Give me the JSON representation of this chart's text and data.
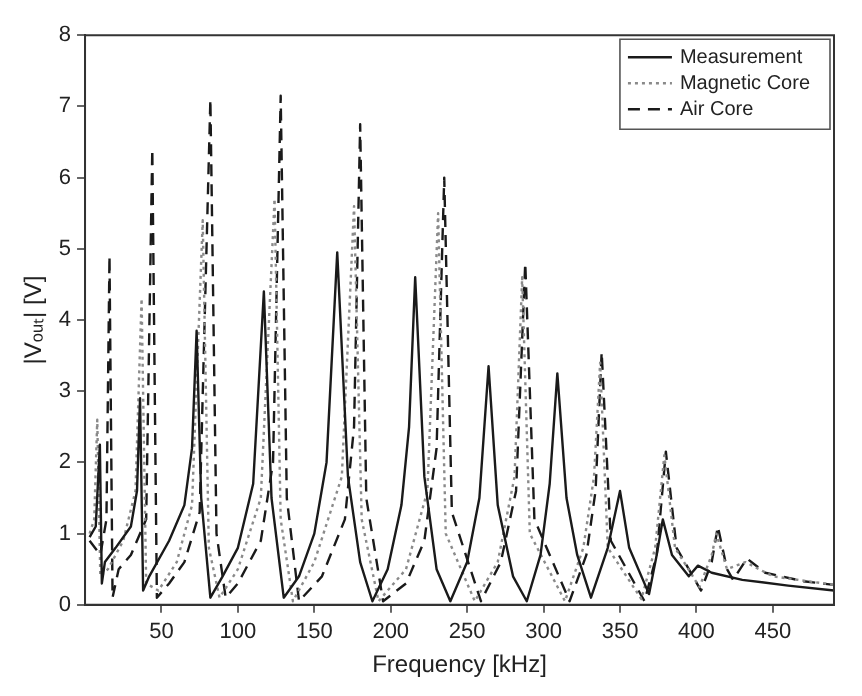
{
  "chart_data": {
    "type": "line",
    "xlabel": "Frequency [kHz]",
    "ylabel": "|Vₒᵤₜ| [V]",
    "xlim": [
      0,
      490
    ],
    "xticks": [
      50,
      100,
      150,
      200,
      250,
      300,
      350,
      400,
      450
    ],
    "ylim": [
      0,
      8
    ],
    "yticks": [
      0,
      1,
      2,
      3,
      4,
      5,
      6,
      7,
      8
    ],
    "grid": false,
    "legend": "top right",
    "marker": "none",
    "series": [
      {
        "name": "Measurement",
        "color": "#1a1a1a",
        "line_style": "solid",
        "x": [
          3,
          7,
          9.7,
          11,
          13,
          20,
          30,
          34,
          36,
          38,
          42,
          55,
          65,
          70,
          73,
          76,
          82,
          90,
          100,
          110,
          117,
          122,
          130,
          140,
          150,
          158,
          165,
          172,
          180,
          188,
          198,
          207,
          212,
          216,
          222,
          230,
          239,
          250,
          258,
          264,
          270,
          280,
          289,
          298,
          304,
          309,
          315,
          322,
          331,
          342,
          350,
          356,
          369,
          374,
          378,
          384,
          395,
          401,
          410,
          430,
          460,
          490
        ],
        "values": [
          0.95,
          1.1,
          2.25,
          0.3,
          0.6,
          0.8,
          1.1,
          1.6,
          2.9,
          0.2,
          0.4,
          0.9,
          1.4,
          2.2,
          3.85,
          1.5,
          0.1,
          0.4,
          0.8,
          1.7,
          4.4,
          1.5,
          0.1,
          0.4,
          1.0,
          2.0,
          4.95,
          1.8,
          0.6,
          0.05,
          0.5,
          1.4,
          2.5,
          4.6,
          1.8,
          0.5,
          0.05,
          0.6,
          1.5,
          3.35,
          1.4,
          0.4,
          0.05,
          0.7,
          1.7,
          3.25,
          1.5,
          0.7,
          0.1,
          0.8,
          1.6,
          0.8,
          0.15,
          0.7,
          1.2,
          0.7,
          0.4,
          0.55,
          0.45,
          0.35,
          0.27,
          0.2
        ]
      },
      {
        "name": "Magnetic Core",
        "color": "#8a8a8a",
        "line_style": "dotted",
        "x": [
          3,
          6,
          8,
          10,
          15,
          25,
          33,
          37,
          40,
          48,
          60,
          70,
          77,
          81,
          88,
          100,
          115,
          124,
          128,
          136,
          150,
          168,
          176,
          181,
          192,
          210,
          224,
          231,
          236,
          255,
          270,
          281,
          286,
          291,
          314,
          326,
          333,
          337,
          342,
          364,
          373,
          379,
          386,
          402,
          410,
          413,
          420,
          432,
          450,
          490
        ],
        "values": [
          1.0,
          1.2,
          2.6,
          0.4,
          0.5,
          0.9,
          1.6,
          4.3,
          0.3,
          0.2,
          0.6,
          1.4,
          5.4,
          0.8,
          0.1,
          0.5,
          1.5,
          5.7,
          1.2,
          0.05,
          0.6,
          1.8,
          5.6,
          1.2,
          0.05,
          0.5,
          1.6,
          5.5,
          1.0,
          0.05,
          0.6,
          1.8,
          4.6,
          1.0,
          0.05,
          0.8,
          1.8,
          3.4,
          0.8,
          0.08,
          0.8,
          2.1,
          0.8,
          0.25,
          0.7,
          1.0,
          0.5,
          0.6,
          0.4,
          0.28
        ]
      },
      {
        "name": "Air Core",
        "color": "#1a1a1a",
        "line_style": "dashed",
        "x": [
          3,
          10,
          14,
          16,
          18,
          22,
          30,
          40,
          44,
          47,
          55,
          65,
          75,
          82,
          86,
          92,
          100,
          115,
          123,
          128,
          132,
          140,
          155,
          170,
          176,
          180,
          184,
          195,
          210,
          222,
          230,
          235,
          240,
          259,
          272,
          282,
          288,
          294,
          317,
          328,
          334,
          338,
          344,
          366,
          374,
          380,
          387,
          403,
          410,
          414,
          420,
          424,
          433,
          445,
          470,
          490
        ],
        "values": [
          0.9,
          0.7,
          1.2,
          4.9,
          0.1,
          0.5,
          0.7,
          1.2,
          6.4,
          0.1,
          0.3,
          0.6,
          1.3,
          7.1,
          1.0,
          0.1,
          0.3,
          0.9,
          2.0,
          7.15,
          1.5,
          0.05,
          0.4,
          1.2,
          2.5,
          6.75,
          1.5,
          0.05,
          0.3,
          0.9,
          2.2,
          6.0,
          1.3,
          0.05,
          0.6,
          1.6,
          4.8,
          1.2,
          0.05,
          0.7,
          1.6,
          3.55,
          0.9,
          0.05,
          0.7,
          2.15,
          0.8,
          0.2,
          0.6,
          1.1,
          0.5,
          0.35,
          0.65,
          0.45,
          0.33,
          0.28
        ]
      }
    ]
  }
}
